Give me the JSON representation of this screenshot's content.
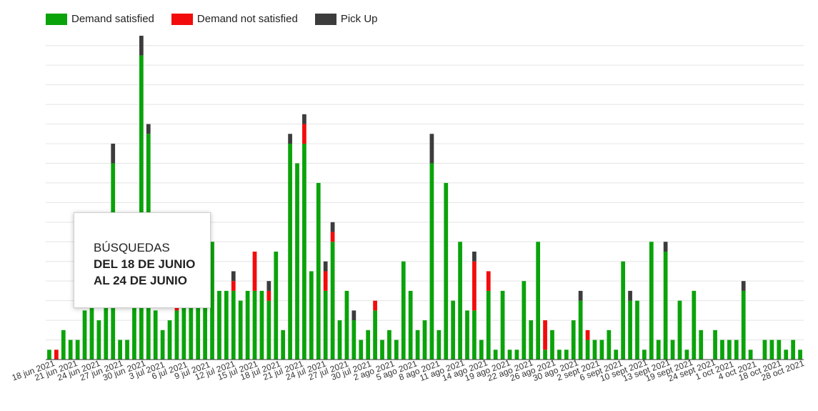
{
  "chart_data": {
    "type": "bar",
    "stacked": true,
    "title": "",
    "xlabel": "",
    "ylabel": "",
    "ylim": [
      0,
      33
    ],
    "grid": true,
    "legend_position": "top-left",
    "series": [
      {
        "name": "Demand satisfied",
        "color": "#0aa30a",
        "values": [
          1,
          0,
          3,
          2,
          2,
          5,
          6,
          4,
          8,
          20,
          2,
          2,
          8,
          31,
          23,
          5,
          3,
          4,
          5,
          7,
          6,
          6,
          7,
          12,
          7,
          7,
          7,
          6,
          7,
          7,
          7,
          6,
          11,
          3,
          22,
          20,
          22,
          9,
          18,
          7,
          12,
          4,
          7,
          4,
          2,
          3,
          5,
          2,
          3,
          2,
          10,
          7,
          3,
          4,
          20,
          3,
          18,
          6,
          12,
          5,
          5,
          2,
          7,
          1,
          7,
          1,
          1,
          8,
          4,
          12,
          1,
          3,
          1,
          1,
          4,
          6,
          2,
          2,
          2,
          3,
          1,
          10,
          6,
          6,
          1,
          12,
          2,
          11,
          2,
          6,
          1,
          7,
          3,
          0,
          3,
          2,
          2,
          2,
          7,
          1,
          0,
          2,
          2,
          2,
          1,
          2,
          1
        ]
      },
      {
        "name": "Demand not satisfied",
        "color": "#f20c0c",
        "values": [
          0,
          1,
          0,
          0,
          0,
          0,
          0,
          0,
          0,
          0,
          0,
          0,
          0,
          0,
          0,
          0,
          0,
          0,
          1,
          0,
          0,
          0,
          0,
          0,
          0,
          0,
          1,
          0,
          0,
          4,
          0,
          1,
          0,
          0,
          0,
          0,
          2,
          0,
          0,
          2,
          1,
          0,
          0,
          0,
          0,
          0,
          1,
          0,
          0,
          0,
          0,
          0,
          0,
          0,
          0,
          0,
          0,
          0,
          0,
          0,
          5,
          0,
          2,
          0,
          0,
          0,
          0,
          0,
          0,
          0,
          3,
          0,
          0,
          0,
          0,
          0,
          1,
          0,
          0,
          0,
          0,
          0,
          0,
          0,
          0,
          0,
          0,
          0,
          0,
          0,
          0,
          0,
          0,
          0,
          0,
          0,
          0,
          0,
          0,
          0,
          0,
          0,
          0,
          0,
          0,
          0,
          0
        ]
      },
      {
        "name": "Pick Up",
        "color": "#3c3c3c",
        "values": [
          0,
          0,
          0,
          0,
          0,
          0,
          0,
          0,
          0,
          2,
          0,
          0,
          0,
          2,
          1,
          0,
          0,
          0,
          0,
          0,
          0,
          0,
          2,
          0,
          0,
          0,
          1,
          0,
          0,
          0,
          0,
          1,
          0,
          0,
          1,
          0,
          1,
          0,
          0,
          1,
          1,
          0,
          0,
          1,
          0,
          0,
          0,
          0,
          0,
          0,
          0,
          0,
          0,
          0,
          3,
          0,
          0,
          0,
          0,
          0,
          1,
          0,
          0,
          0,
          0,
          0,
          0,
          0,
          0,
          0,
          0,
          0,
          0,
          0,
          0,
          1,
          0,
          0,
          0,
          0,
          0,
          0,
          1,
          0,
          0,
          0,
          0,
          1,
          0,
          0,
          0,
          0,
          0,
          0,
          0,
          0,
          0,
          0,
          1,
          0,
          0,
          0,
          0,
          0,
          0,
          0,
          0
        ]
      }
    ],
    "tick_labels": [
      "18 jun 2021",
      "21 jun 2021",
      "24 jun 2021",
      "27 jun 2021",
      "30 jun 2021",
      "3 jul 2021",
      "6 jul 2021",
      "9 jul 2021",
      "12 jul 2021",
      "15 jul 2021",
      "18 jul 2021",
      "21 jul 2021",
      "24 jul 2021",
      "27 jul 2021",
      "30 jul 2021",
      "2 ago 2021",
      "5 ago 2021",
      "8 ago 2021",
      "11 ago 2021",
      "14 ago 2021",
      "19 ago 2021",
      "22 ago 2021",
      "26 ago 2021",
      "30 ago 2021",
      "2 sept 2021",
      "6 sept 2021",
      "10 sept 2021",
      "13 sept 2021",
      "19 sept 2021",
      "24 sept 2021",
      "1 oct 2021",
      "4 oct 2021",
      "18 oct 2021",
      "28 oct 2021"
    ]
  },
  "tooltip": {
    "line1": "BÚSQUEDAS",
    "line2": "DEL 18 DE JUNIO",
    "line3": "AL 24 DE JUNIO"
  }
}
